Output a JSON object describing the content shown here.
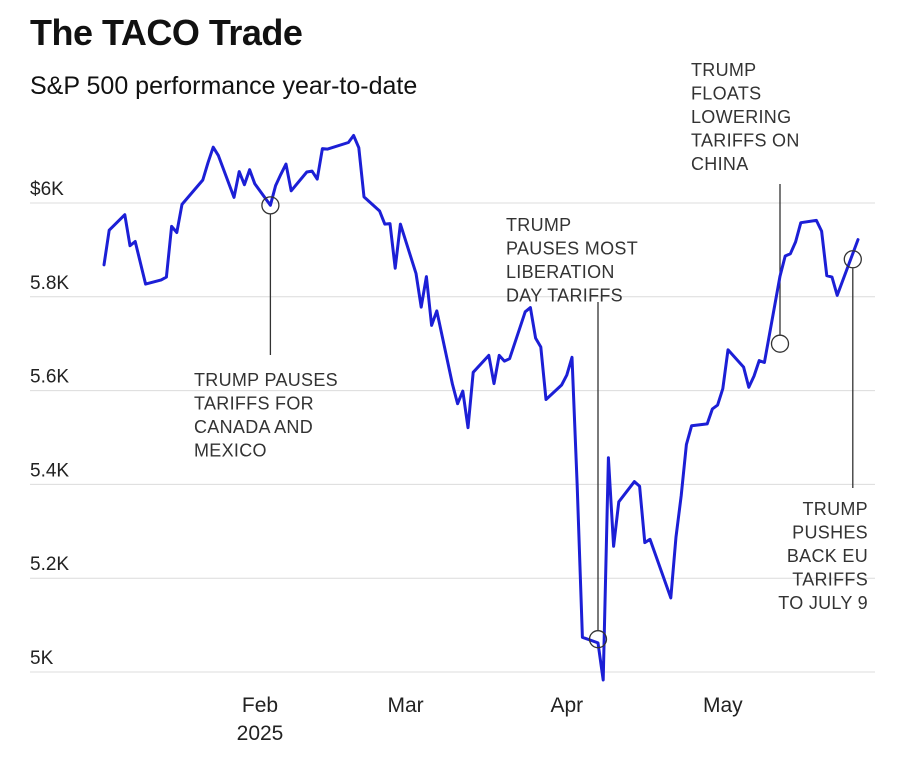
{
  "chart_data": {
    "type": "line",
    "title": "The TACO Trade",
    "subtitle": "S&P 500 performance year-to-date",
    "xlabel": "",
    "ylabel": "",
    "ylim": [
      4980,
      6170
    ],
    "y_ticks": [
      {
        "value": 6000,
        "label": "$6K"
      },
      {
        "value": 5800,
        "label": "5.8K"
      },
      {
        "value": 5600,
        "label": "5.6K"
      },
      {
        "value": 5400,
        "label": "5.4K"
      },
      {
        "value": 5200,
        "label": "5.2K"
      },
      {
        "value": 5000,
        "label": "5K"
      }
    ],
    "x_ticks": [
      {
        "date": "2025-02-01",
        "label": "Feb",
        "sublabel": "2025"
      },
      {
        "date": "2025-03-01",
        "label": "Mar",
        "sublabel": ""
      },
      {
        "date": "2025-04-01",
        "label": "Apr",
        "sublabel": ""
      },
      {
        "date": "2025-05-01",
        "label": "May",
        "sublabel": ""
      }
    ],
    "grid": true,
    "line_color": "#1c1fd6",
    "series": [
      {
        "x": [
          "2025-01-02",
          "2025-01-03",
          "2025-01-06",
          "2025-01-07",
          "2025-01-08",
          "2025-01-10",
          "2025-01-13",
          "2025-01-14",
          "2025-01-15",
          "2025-01-16",
          "2025-01-17",
          "2025-01-21",
          "2025-01-22",
          "2025-01-23",
          "2025-01-24",
          "2025-01-27",
          "2025-01-28",
          "2025-01-29",
          "2025-01-30",
          "2025-01-31",
          "2025-02-03",
          "2025-02-04",
          "2025-02-05",
          "2025-02-06",
          "2025-02-07",
          "2025-02-10",
          "2025-02-11",
          "2025-02-12",
          "2025-02-13",
          "2025-02-14",
          "2025-02-18",
          "2025-02-19",
          "2025-02-20",
          "2025-02-21",
          "2025-02-24",
          "2025-02-25",
          "2025-02-26",
          "2025-02-27",
          "2025-02-28",
          "2025-03-03",
          "2025-03-04",
          "2025-03-05",
          "2025-03-06",
          "2025-03-07",
          "2025-03-10",
          "2025-03-11",
          "2025-03-12",
          "2025-03-13",
          "2025-03-14",
          "2025-03-17",
          "2025-03-18",
          "2025-03-19",
          "2025-03-20",
          "2025-03-21",
          "2025-03-24",
          "2025-03-25",
          "2025-03-26",
          "2025-03-27",
          "2025-03-28",
          "2025-03-31",
          "2025-04-01",
          "2025-04-02",
          "2025-04-03",
          "2025-04-04",
          "2025-04-07",
          "2025-04-08",
          "2025-04-09",
          "2025-04-10",
          "2025-04-11",
          "2025-04-14",
          "2025-04-15",
          "2025-04-16",
          "2025-04-17",
          "2025-04-21",
          "2025-04-22",
          "2025-04-23",
          "2025-04-24",
          "2025-04-25",
          "2025-04-28",
          "2025-04-29",
          "2025-04-30",
          "2025-05-01",
          "2025-05-02",
          "2025-05-05",
          "2025-05-06",
          "2025-05-07",
          "2025-05-08",
          "2025-05-09",
          "2025-05-12",
          "2025-05-13",
          "2025-05-14",
          "2025-05-15",
          "2025-05-16",
          "2025-05-19",
          "2025-05-20",
          "2025-05-21",
          "2025-05-22",
          "2025-05-23",
          "2025-05-27"
        ],
        "values": [
          5868,
          5942,
          5975,
          5909,
          5918,
          5827,
          5836,
          5842,
          5950,
          5937,
          5997,
          6049,
          6086,
          6119,
          6101,
          6012,
          6067,
          6039,
          6071,
          6041,
          5995,
          6037,
          6061,
          6083,
          6026,
          6066,
          6068,
          6051,
          6116,
          6115,
          6129,
          6144,
          6118,
          6013,
          5983,
          5955,
          5956,
          5861,
          5955,
          5850,
          5778,
          5843,
          5739,
          5770,
          5614,
          5572,
          5599,
          5521,
          5639,
          5675,
          5615,
          5675,
          5663,
          5668,
          5768,
          5777,
          5712,
          5693,
          5581,
          5612,
          5633,
          5671,
          5397,
          5074,
          5062,
          4983,
          5457,
          5268,
          5363,
          5406,
          5396,
          5276,
          5283,
          5158,
          5288,
          5376,
          5485,
          5525,
          5529,
          5561,
          5569,
          5604,
          5687,
          5650,
          5607,
          5631,
          5664,
          5660,
          5844,
          5887,
          5892,
          5917,
          5958,
          5963,
          5940,
          5845,
          5842,
          5803,
          5922
        ]
      }
    ],
    "annotations": [
      {
        "date": "2025-02-03",
        "value": 5995,
        "lines": [
          "TRUMP PAUSES",
          "TARIFFS FOR",
          "CANADA AND",
          "MEXICO"
        ]
      },
      {
        "date": "2025-04-07",
        "value": 5070,
        "lines": [
          "TRUMP",
          "PAUSES MOST",
          "LIBERATION",
          "DAY TARIFFS"
        ]
      },
      {
        "date": "2025-05-12",
        "value": 5700,
        "lines": [
          "TRUMP",
          "FLOATS",
          "LOWERING",
          "TARIFFS ON",
          "CHINA"
        ]
      },
      {
        "date": "2025-05-26",
        "value": 5880,
        "lines": [
          "TRUMP",
          "PUSHES",
          "BACK EU",
          "TARIFFS",
          "TO JULY 9"
        ]
      }
    ]
  }
}
